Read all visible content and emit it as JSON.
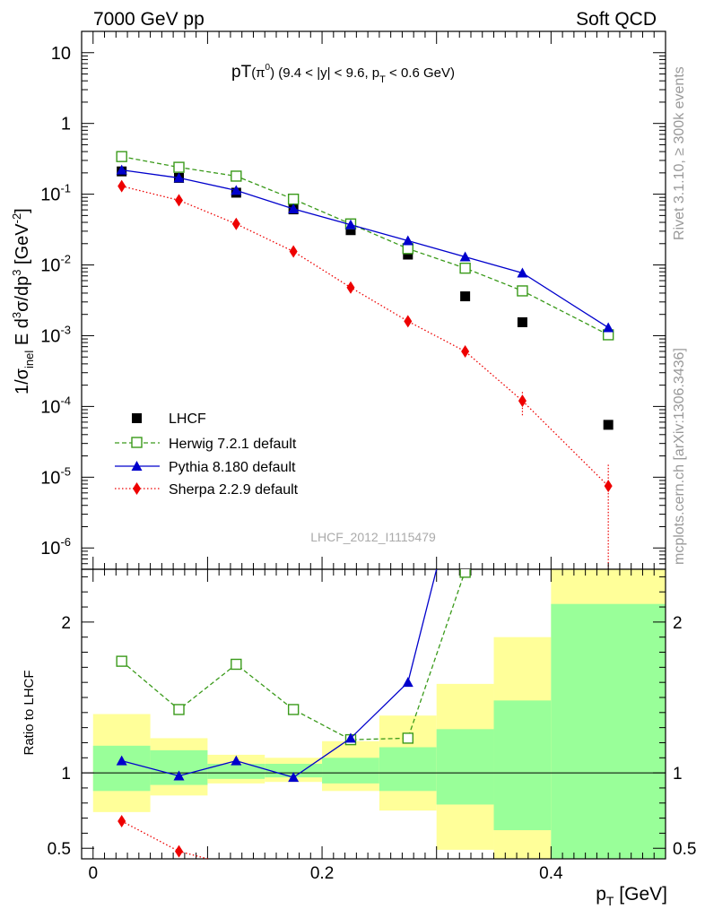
{
  "header": {
    "left": "7000 GeV pp",
    "right": "Soft QCD"
  },
  "side_labels": {
    "rivet": "Rivet 3.1.10, ≥ 300k events",
    "mcplots": "mcplots.cern.ch [arXiv:1306.3436]"
  },
  "watermark": "LHCF_2012_I1115479",
  "colors": {
    "data": "#000000",
    "herwig": "#3a9a1a",
    "pythia": "#0000cc",
    "sherpa": "#ee0000",
    "band_outer": "#ffff99",
    "band_inner": "#99ff99"
  },
  "chart_data": [
    {
      "type": "scatter",
      "title_parts": {
        "lead": "pT",
        "particle": "(π",
        "particle_sup": "0",
        "particle_close": ")",
        "range": " (9.4 < |y| < 9.6, p",
        "range_sub": "T",
        "range_end": " < 0.6 GeV)"
      },
      "ylabel_parts": {
        "a": "1/σ",
        "a_sub": "inel",
        "b": " E d",
        "b_sup": "3",
        "c": "σ/dp",
        "c_sup": "3",
        "d": " [GeV",
        "d_sup": "-2",
        "e": "]"
      },
      "ylog": true,
      "ylim": [
        5e-07,
        20
      ],
      "xlim": [
        -0.01,
        0.5
      ],
      "ytick_labels": [
        {
          "base": "10",
          "exp": "-6",
          "v": 1e-06
        },
        {
          "base": "10",
          "exp": "-5",
          "v": 1e-05
        },
        {
          "base": "10",
          "exp": "-4",
          "v": 0.0001
        },
        {
          "base": "10",
          "exp": "-3",
          "v": 0.001
        },
        {
          "base": "10",
          "exp": "-2",
          "v": 0.01
        },
        {
          "base": "10",
          "exp": "-1",
          "v": 0.1
        },
        {
          "base": "1",
          "exp": "",
          "v": 1
        },
        {
          "base": "10",
          "exp": "",
          "v": 10
        }
      ],
      "legend": [
        "LHCF",
        "Herwig 7.2.1 default",
        "Pythia 8.180 default",
        "Sherpa 2.2.9 default"
      ],
      "series": [
        {
          "name": "LHCF",
          "style": "data",
          "x": [
            0.025,
            0.075,
            0.125,
            0.175,
            0.225,
            0.275,
            0.325,
            0.375,
            0.45
          ],
          "y": [
            0.21,
            0.17,
            0.105,
            0.061,
            0.031,
            0.014,
            0.0036,
            0.00155,
            5.5e-05
          ]
        },
        {
          "name": "Herwig 7.2.1 default",
          "style": "herwig",
          "x": [
            0.025,
            0.075,
            0.125,
            0.175,
            0.225,
            0.275,
            0.325,
            0.375,
            0.45
          ],
          "y": [
            0.34,
            0.24,
            0.18,
            0.085,
            0.038,
            0.017,
            0.009,
            0.0043,
            0.00103
          ]
        },
        {
          "name": "Pythia 8.180 default",
          "style": "pythia",
          "x": [
            0.025,
            0.075,
            0.125,
            0.175,
            0.225,
            0.275,
            0.325,
            0.375,
            0.45
          ],
          "y": [
            0.22,
            0.17,
            0.113,
            0.062,
            0.037,
            0.022,
            0.013,
            0.0077,
            0.0013
          ]
        },
        {
          "name": "Sherpa 2.2.9 default",
          "style": "sherpa",
          "x": [
            0.025,
            0.075,
            0.125,
            0.175,
            0.225,
            0.275,
            0.325,
            0.375,
            0.45
          ],
          "y": [
            0.13,
            0.082,
            0.038,
            0.0155,
            0.0048,
            0.0016,
            0.0006,
            0.00012,
            7.5e-06
          ]
        }
      ]
    },
    {
      "type": "scatter",
      "ylabel": "Ratio to LHCF",
      "xlabel_parts": {
        "p": "p",
        "sub": "T",
        "rest": " [GeV]"
      },
      "xlim": [
        -0.01,
        0.5
      ],
      "ylim": [
        0.43,
        2.35
      ],
      "xtick_labels": [
        {
          "label": "0",
          "v": 0
        },
        {
          "label": "0.2",
          "v": 0.2
        },
        {
          "label": "0.4",
          "v": 0.4
        }
      ],
      "ytick_labels": [
        {
          "label": "0.5",
          "v": 0.5
        },
        {
          "label": "1",
          "v": 1
        },
        {
          "label": "2",
          "v": 2
        }
      ],
      "bins": [
        {
          "x0": 0.0,
          "x1": 0.05,
          "outer": [
            0.74,
            1.39
          ],
          "inner": [
            0.88,
            1.18
          ]
        },
        {
          "x0": 0.05,
          "x1": 0.1,
          "outer": [
            0.85,
            1.23
          ],
          "inner": [
            0.92,
            1.15
          ]
        },
        {
          "x0": 0.1,
          "x1": 0.15,
          "outer": [
            0.93,
            1.12
          ],
          "inner": [
            0.96,
            1.06
          ]
        },
        {
          "x0": 0.15,
          "x1": 0.2,
          "outer": [
            0.94,
            1.1
          ],
          "inner": [
            0.97,
            1.06
          ]
        },
        {
          "x0": 0.2,
          "x1": 0.25,
          "outer": [
            0.88,
            1.21
          ],
          "inner": [
            0.93,
            1.1
          ]
        },
        {
          "x0": 0.25,
          "x1": 0.3,
          "outer": [
            0.75,
            1.38
          ],
          "inner": [
            0.88,
            1.17
          ]
        },
        {
          "x0": 0.3,
          "x1": 0.35,
          "outer": [
            0.49,
            1.59
          ],
          "inner": [
            0.79,
            1.29
          ]
        },
        {
          "x0": 0.35,
          "x1": 0.4,
          "outer": [
            0.35,
            1.9
          ],
          "inner": [
            0.62,
            1.48
          ]
        },
        {
          "x0": 0.4,
          "x1": 0.5,
          "outer": [
            0.25,
            2.6
          ],
          "inner": [
            0.2,
            2.12
          ]
        }
      ],
      "series": [
        {
          "name": "Herwig 7.2.1 default",
          "style": "herwig",
          "x": [
            0.025,
            0.075,
            0.125,
            0.175,
            0.225,
            0.275,
            0.325
          ],
          "y": [
            1.74,
            1.42,
            1.72,
            1.42,
            1.22,
            1.23,
            2.34
          ]
        },
        {
          "name": "Pythia 8.180 default",
          "style": "pythia",
          "x": [
            0.025,
            0.075,
            0.125,
            0.175,
            0.225,
            0.275,
            0.3
          ],
          "y": [
            1.08,
            0.98,
            1.08,
            0.97,
            1.23,
            1.6,
            2.35
          ]
        },
        {
          "name": "Sherpa 2.2.9 default",
          "style": "sherpa",
          "x": [
            0.025,
            0.075,
            0.105
          ],
          "y": [
            0.68,
            0.48,
            0.42
          ]
        }
      ]
    }
  ]
}
